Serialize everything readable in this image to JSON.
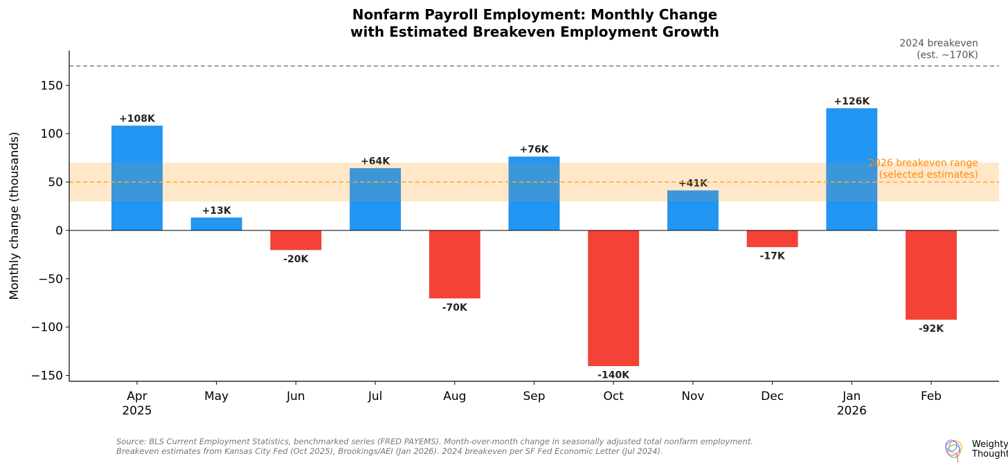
{
  "chart_data": {
    "type": "bar",
    "title": "Nonfarm Payroll Employment: Monthly Change\nwith Estimated Breakeven Employment Growth",
    "title_lines": [
      "Nonfarm Payroll Employment: Monthly Change",
      "with Estimated Breakeven Employment Growth"
    ],
    "ylabel": "Monthly change (thousands)",
    "xlabel": "",
    "ylim": [
      -156,
      186
    ],
    "yticks": [
      -150,
      -100,
      -50,
      0,
      50,
      100,
      150
    ],
    "ytick_labels": [
      "−150",
      "−100",
      "−50",
      "0",
      "50",
      "100",
      "150"
    ],
    "categories": [
      "Apr\n2025",
      "May",
      "Jun",
      "Jul",
      "Aug",
      "Sep",
      "Oct",
      "Nov",
      "Dec",
      "Jan\n2026",
      "Feb"
    ],
    "category_lines": [
      [
        "Apr",
        "2025"
      ],
      [
        "May"
      ],
      [
        "Jun"
      ],
      [
        "Jul"
      ],
      [
        "Aug"
      ],
      [
        "Sep"
      ],
      [
        "Oct"
      ],
      [
        "Nov"
      ],
      [
        "Dec"
      ],
      [
        "Jan",
        "2026"
      ],
      [
        "Feb"
      ]
    ],
    "values": [
      108,
      13,
      -20,
      64,
      -70,
      76,
      -140,
      41,
      -17,
      126,
      -92
    ],
    "data_labels": [
      "+108K",
      "+13K",
      "-20K",
      "+64K",
      "-70K",
      "+76K",
      "-140K",
      "+41K",
      "-17K",
      "+126K",
      "-92K"
    ],
    "grid": false,
    "colors": {
      "positive": "#2196F3",
      "negative": "#F44336",
      "breakeven_2024": "#808080",
      "breakeven_2026": "#FFA726",
      "band": "#FFF1E0",
      "band_label": "#FF8C00"
    },
    "reference_lines": [
      {
        "value": 170,
        "label_lines": [
          "2024 breakeven",
          "(est. ~170K)"
        ],
        "style": "dashed"
      },
      {
        "value": 50,
        "label_lines": [
          "2026 breakeven range",
          "(selected estimates)"
        ],
        "style": "dashed",
        "band": [
          30,
          70
        ]
      }
    ]
  },
  "footer": {
    "line1": "Source: BLS Current Employment Statistics, benchmarked series (FRED PAYEMS). Month-over-month change in seasonally adjusted total nonfarm employment.",
    "line2": "Breakeven estimates from Kansas City Fed (Oct 2025), Brookings/AEI (Jan 2026). 2024 breakeven per SF Fed Economic Letter (Jul 2024)."
  },
  "logo": {
    "line1": "Weighty",
    "line2": "Thoughts"
  }
}
